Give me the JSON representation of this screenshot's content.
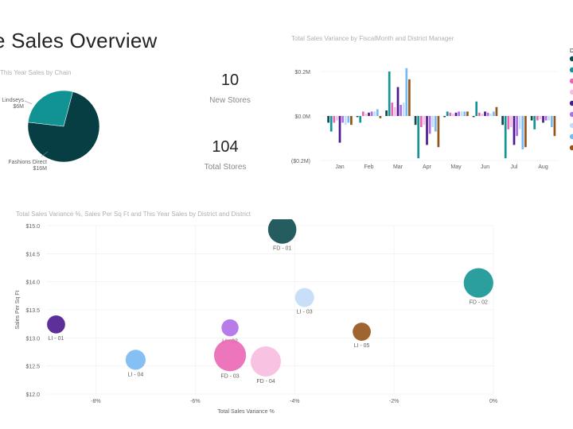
{
  "page": {
    "title": "e Sales Overview"
  },
  "pie_title": "This Year Sales by Chain",
  "cards": [
    {
      "value": "10",
      "label": "New Stores"
    },
    {
      "value": "104",
      "label": "Total Stores"
    }
  ],
  "bar_title": "Total Sales Variance by FiscalMonth and District Manager",
  "scatter_title": "Total Sales Variance %, Sales Per Sq Ft and This Year Sales by District and District",
  "legend_title_fragment": "D",
  "colors": {
    "fd01": "#0d4a4e",
    "fd02": "#149494",
    "fd03": "#ea66b4",
    "fd04": "#f7bde0",
    "li01": "#4b1a8e",
    "li02": "#b06de8",
    "li03": "#c3dcf7",
    "li04": "#77b9f2",
    "li05": "#95541a",
    "pie_fd": "#073e43",
    "pie_li": "#129393"
  },
  "chart_data": [
    {
      "type": "pie",
      "title": "This Year Sales by Chain",
      "slices": [
        {
          "label": "Fashions Direct",
          "value_label": "$16M",
          "value": 16,
          "color": "#073e43"
        },
        {
          "label": "Lindseys",
          "value_label": "$6M",
          "value": 6,
          "color": "#129393"
        }
      ]
    },
    {
      "type": "bar",
      "title": "Total Sales Variance by FiscalMonth and District Manager",
      "categories": [
        "Jan",
        "Feb",
        "Mar",
        "Apr",
        "May",
        "Jun",
        "Jul",
        "Aug"
      ],
      "y_ticks": [
        "$0.2M",
        "$0.0M",
        "($0.2M)"
      ],
      "ylim": [
        -0.2,
        0.2
      ],
      "legend_title": "D",
      "series": [
        {
          "color": "#0d4a4e",
          "values": [
            -0.03,
            -0.005,
            0.025,
            -0.04,
            -0.005,
            -0.005,
            -0.04,
            -0.02
          ]
        },
        {
          "color": "#149494",
          "values": [
            -0.07,
            -0.03,
            0.2,
            -0.19,
            0.02,
            0.065,
            -0.19,
            -0.06
          ]
        },
        {
          "color": "#ea66b4",
          "values": [
            -0.03,
            0.02,
            0.06,
            -0.05,
            0.015,
            0.015,
            -0.06,
            -0.02
          ]
        },
        {
          "color": "#f7bde0",
          "values": [
            -0.02,
            0.01,
            0.04,
            -0.04,
            0.01,
            0.01,
            -0.05,
            -0.015
          ]
        },
        {
          "color": "#4b1a8e",
          "values": [
            -0.12,
            0.015,
            0.13,
            -0.13,
            0.015,
            0.02,
            -0.13,
            -0.03
          ]
        },
        {
          "color": "#b06de8",
          "values": [
            -0.03,
            0.02,
            0.05,
            -0.08,
            0.02,
            0.015,
            -0.09,
            -0.02
          ]
        },
        {
          "color": "#c3dcf7",
          "values": [
            -0.04,
            0.02,
            0.06,
            -0.05,
            0.02,
            0.01,
            -0.06,
            -0.02
          ]
        },
        {
          "color": "#77b9f2",
          "values": [
            -0.03,
            0.03,
            0.215,
            -0.07,
            0.02,
            0.02,
            -0.15,
            -0.05
          ]
        },
        {
          "color": "#95541a",
          "values": [
            -0.04,
            -0.01,
            0.165,
            -0.14,
            0.02,
            0.04,
            -0.14,
            -0.09
          ]
        }
      ]
    },
    {
      "type": "scatter",
      "title": "Total Sales Variance %, Sales Per Sq Ft and This Year Sales by District and District",
      "xlabel": "Total Sales Variance %",
      "ylabel": "Sales Per Sq Ft",
      "x_ticks": [
        "-8%",
        "-6%",
        "-4%",
        "-2%",
        "0%"
      ],
      "y_ticks": [
        "$15.0",
        "$14.5",
        "$14.0",
        "$13.5",
        "$13.0",
        "$12.5",
        "$12.0"
      ],
      "xlim": [
        -9.0,
        0.0
      ],
      "ylim": [
        12.0,
        15.0
      ],
      "points": [
        {
          "label": "FD - 01",
          "x": -4.25,
          "y": 14.93,
          "size": 2.2,
          "color": "#0d4a4e"
        },
        {
          "label": "FD - 02",
          "x": -0.3,
          "y": 13.98,
          "size": 2.4,
          "color": "#149494"
        },
        {
          "label": "LI - 03",
          "x": -3.8,
          "y": 13.72,
          "size": 1.0,
          "color": "#c3dcf7"
        },
        {
          "label": "LI - 01",
          "x": -8.8,
          "y": 13.24,
          "size": 0.9,
          "color": "#4b1a8e"
        },
        {
          "label": "LI - 02",
          "x": -5.3,
          "y": 13.18,
          "size": 0.8,
          "color": "#b06de8"
        },
        {
          "label": "LI - 05",
          "x": -2.65,
          "y": 13.11,
          "size": 0.9,
          "color": "#95541a"
        },
        {
          "label": "FD - 03",
          "x": -5.3,
          "y": 12.69,
          "size": 2.8,
          "color": "#ea66b4"
        },
        {
          "label": "FD - 04",
          "x": -4.58,
          "y": 12.58,
          "size": 2.5,
          "color": "#f7bde0"
        },
        {
          "label": "LI - 04",
          "x": -7.2,
          "y": 12.61,
          "size": 1.1,
          "color": "#77b9f2"
        }
      ]
    }
  ]
}
